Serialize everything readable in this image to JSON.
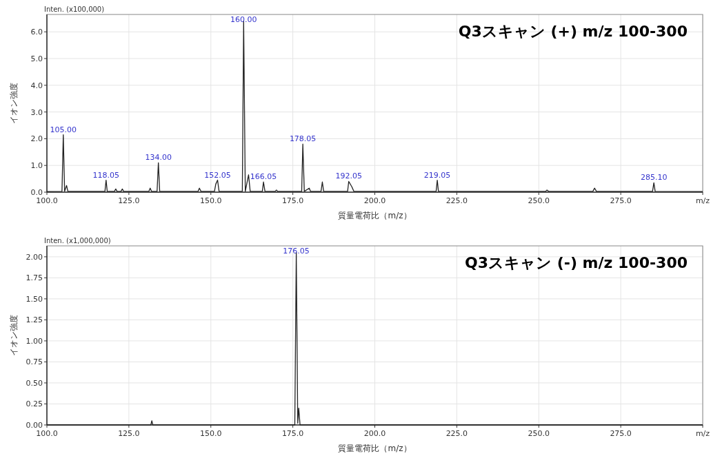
{
  "chart_data": [
    {
      "type": "line",
      "title": "Q3スキャン (+) m/z 100-300",
      "xlabel": "質量電荷比（m/z）",
      "ylabel": "イオン強度",
      "grid": true,
      "xlim": [
        100,
        300
      ],
      "xticks": [
        {
          "value": 100,
          "label": "100.0"
        },
        {
          "value": 125,
          "label": "125.0"
        },
        {
          "value": 150,
          "label": "150.0"
        },
        {
          "value": 175,
          "label": "175.0"
        },
        {
          "value": 200,
          "label": "200.0"
        },
        {
          "value": 225,
          "label": "225.0"
        },
        {
          "value": 250,
          "label": "250.0"
        },
        {
          "value": 275,
          "label": "275.0"
        },
        {
          "value": 300,
          "label": "m/z"
        }
      ],
      "ylim": [
        0,
        6.65
      ],
      "yticks": [
        {
          "value": 0,
          "label": "0.0"
        },
        {
          "value": 1,
          "label": "1.0"
        },
        {
          "value": 2,
          "label": "2.0"
        },
        {
          "value": 3,
          "label": "3.0"
        },
        {
          "value": 4,
          "label": "4.0"
        },
        {
          "value": 5,
          "label": "5.0"
        },
        {
          "value": 6,
          "label": "6.0"
        }
      ],
      "series": [
        {
          "color": "#222222",
          "x": [
            100,
            104.6,
            105.0,
            105.4,
            106.0,
            106.4,
            117.7,
            118.05,
            118.4,
            120.6,
            121.0,
            121.4,
            122.6,
            123.0,
            123.4,
            131.1,
            131.5,
            131.9,
            133.6,
            134.0,
            134.4,
            146.1,
            146.5,
            147.0,
            151.1,
            151.5,
            152.05,
            152.5,
            159.6,
            160.0,
            160.5,
            161.5,
            162.0,
            165.7,
            166.05,
            166.5,
            169.6,
            170.0,
            170.4,
            177.7,
            178.05,
            178.5,
            180.0,
            180.4,
            183.6,
            184.0,
            184.4,
            191.7,
            192.05,
            193.0,
            193.6,
            218.7,
            219.05,
            219.4,
            252.1,
            252.5,
            253.0,
            266.5,
            267.0,
            267.6,
            284.7,
            285.1,
            285.5,
            300
          ],
          "values": [
            0.02,
            0.03,
            2.15,
            0.03,
            0.25,
            0.03,
            0.03,
            0.45,
            0.03,
            0.03,
            0.12,
            0.03,
            0.03,
            0.12,
            0.03,
            0.03,
            0.15,
            0.03,
            0.03,
            1.1,
            0.03,
            0.03,
            0.15,
            0.03,
            0.03,
            0.3,
            0.45,
            0.03,
            0.03,
            6.4,
            0.03,
            0.65,
            0.03,
            0.03,
            0.38,
            0.03,
            0.03,
            0.08,
            0.03,
            0.03,
            1.8,
            0.03,
            0.15,
            0.03,
            0.03,
            0.38,
            0.03,
            0.03,
            0.4,
            0.2,
            0.03,
            0.03,
            0.45,
            0.03,
            0.03,
            0.08,
            0.03,
            0.03,
            0.15,
            0.03,
            0.03,
            0.35,
            0.03,
            0.02
          ]
        }
      ],
      "annotations": [
        "Inten. (x100,000)",
        {
          "text": "105.00",
          "x": 105.0,
          "y": 2.15
        },
        {
          "text": "118.05",
          "x": 118.05,
          "y": 0.45
        },
        {
          "text": "134.00",
          "x": 134.0,
          "y": 1.1
        },
        {
          "text": "152.05",
          "x": 152.05,
          "y": 0.45
        },
        {
          "text": "160.00",
          "x": 160.0,
          "y": 6.4
        },
        {
          "text": "166.05",
          "x": 166.05,
          "y": 0.38
        },
        {
          "text": "178.05",
          "x": 178.05,
          "y": 1.8
        },
        {
          "text": "192.05",
          "x": 192.05,
          "y": 0.4
        },
        {
          "text": "219.05",
          "x": 219.05,
          "y": 0.45
        },
        {
          "text": "285.10",
          "x": 285.1,
          "y": 0.35
        }
      ]
    },
    {
      "type": "line",
      "title": "Q3スキャン (-) m/z 100-300",
      "xlabel": "質量電荷比（m/z）",
      "ylabel": "イオン強度",
      "grid": true,
      "xlim": [
        100,
        300
      ],
      "xticks": [
        {
          "value": 100,
          "label": "100.0"
        },
        {
          "value": 125,
          "label": "125.0"
        },
        {
          "value": 150,
          "label": "150.0"
        },
        {
          "value": 175,
          "label": "175.0"
        },
        {
          "value": 200,
          "label": "200.0"
        },
        {
          "value": 225,
          "label": "225.0"
        },
        {
          "value": 250,
          "label": "250.0"
        },
        {
          "value": 275,
          "label": "275.0"
        },
        {
          "value": 300,
          "label": "m/z"
        }
      ],
      "ylim": [
        0,
        2.13
      ],
      "yticks": [
        {
          "value": 0,
          "label": "0.00"
        },
        {
          "value": 0.25,
          "label": "0.25"
        },
        {
          "value": 0.5,
          "label": "0.50"
        },
        {
          "value": 0.75,
          "label": "0.75"
        },
        {
          "value": 1,
          "label": "1.00"
        },
        {
          "value": 1.25,
          "label": "1.25"
        },
        {
          "value": 1.5,
          "label": "1.50"
        },
        {
          "value": 1.75,
          "label": "1.75"
        },
        {
          "value": 2,
          "label": "2.00"
        }
      ],
      "series": [
        {
          "color": "#222222",
          "x": [
            100,
            131.7,
            132.0,
            132.3,
            175.6,
            176.05,
            176.5,
            176.8,
            177.2,
            300
          ],
          "values": [
            0,
            0,
            0.05,
            0,
            0,
            2.05,
            0.02,
            0.2,
            0,
            0
          ]
        }
      ],
      "annotations": [
        "Inten. (x1,000,000)",
        {
          "text": "176.05",
          "x": 176.05,
          "y": 2.05
        }
      ]
    }
  ]
}
